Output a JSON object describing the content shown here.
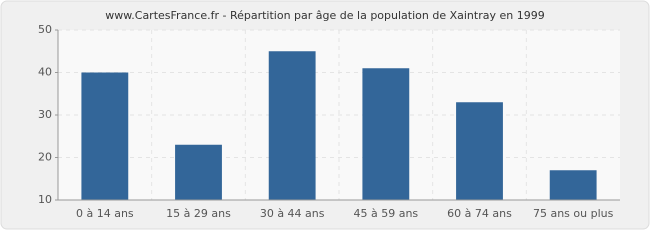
{
  "chart_data": {
    "type": "bar",
    "title": "www.CartesFrance.fr - Répartition par âge de la population de Xaintray en 1999",
    "categories": [
      "0 à 14 ans",
      "15 à 29 ans",
      "30 à 44 ans",
      "45 à 59 ans",
      "60 à 74 ans",
      "75 ans ou plus"
    ],
    "values": [
      40,
      23,
      45,
      41,
      33,
      17
    ],
    "color": "#336699",
    "ylim": [
      10,
      50
    ],
    "yticks": [
      10,
      20,
      30,
      40,
      50
    ],
    "grid": true
  }
}
